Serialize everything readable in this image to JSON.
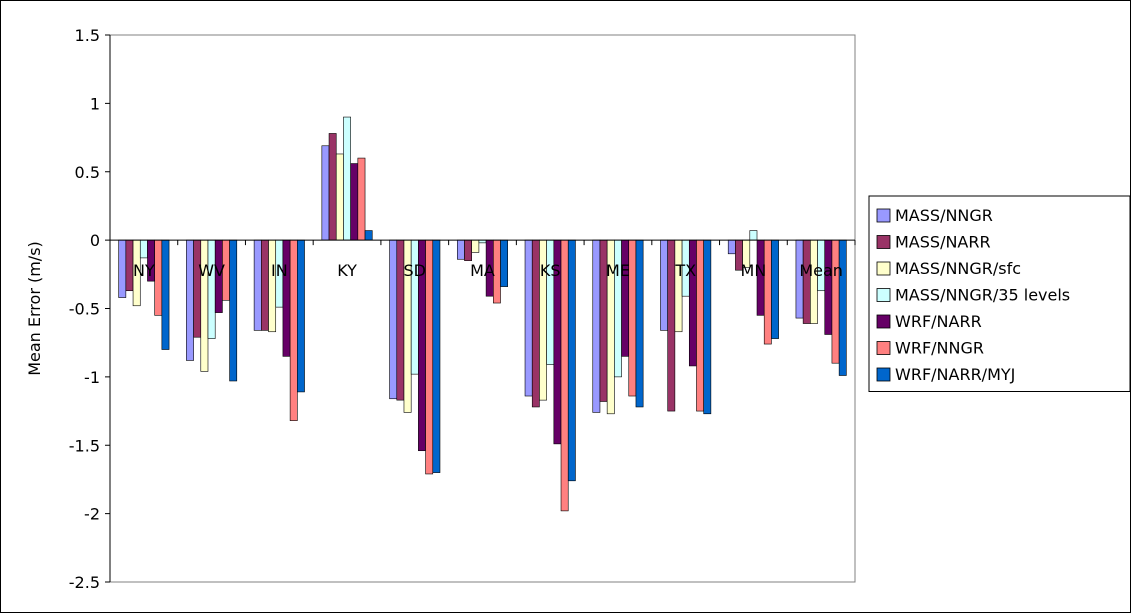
{
  "chart_data": {
    "type": "bar",
    "title": "",
    "xlabel": "",
    "ylabel": "Mean Error (m/s)",
    "ylim": [
      -2.5,
      1.5
    ],
    "yticks": [
      1.5,
      1,
      0.5,
      0,
      -0.5,
      -1,
      -1.5,
      -2,
      -2.5
    ],
    "ytick_labels": [
      "1.5",
      "1",
      "0.5",
      "0",
      "-0.5",
      "-1",
      "-1.5",
      "-2",
      "-2.5"
    ],
    "grid": false,
    "legend_position": "right",
    "categories": [
      "NY",
      "WV",
      "IN",
      "KY",
      "SD",
      "MA",
      "KS",
      "ME",
      "TX",
      "MN",
      "Mean"
    ],
    "series": [
      {
        "name": "MASS/NNGR",
        "color": "#9999ff",
        "values": [
          -0.42,
          -0.88,
          -0.66,
          0.69,
          -1.16,
          -0.14,
          -1.14,
          -1.26,
          -0.66,
          -0.1,
          -0.57
        ]
      },
      {
        "name": "MASS/NARR",
        "color": "#993366",
        "values": [
          -0.37,
          -0.71,
          -0.66,
          0.78,
          -1.17,
          -0.15,
          -1.22,
          -1.18,
          -1.25,
          -0.22,
          -0.61
        ]
      },
      {
        "name": "MASS/NNGR/sfc",
        "color": "#ffffcc",
        "values": [
          -0.48,
          -0.96,
          -0.67,
          0.63,
          -1.26,
          -0.09,
          -1.17,
          -1.27,
          -0.67,
          -0.2,
          -0.61
        ]
      },
      {
        "name": "MASS/NNGR/35 levels",
        "color": "#ccffff",
        "values": [
          -0.13,
          -0.72,
          -0.49,
          0.9,
          -0.98,
          -0.02,
          -0.91,
          -1.0,
          -0.41,
          0.07,
          -0.37
        ]
      },
      {
        "name": "WRF/NARR",
        "color": "#660066",
        "values": [
          -0.3,
          -0.53,
          -0.85,
          0.56,
          -1.54,
          -0.41,
          -1.49,
          -0.85,
          -0.92,
          -0.55,
          -0.69
        ]
      },
      {
        "name": "WRF/NNGR",
        "color": "#ff8080",
        "values": [
          -0.55,
          -0.44,
          -1.32,
          0.6,
          -1.71,
          -0.46,
          -1.98,
          -1.14,
          -1.25,
          -0.76,
          -0.9
        ]
      },
      {
        "name": "WRF/NARR/MYJ",
        "color": "#0066cc",
        "values": [
          -0.8,
          -1.03,
          -1.11,
          0.07,
          -1.7,
          -0.34,
          -1.76,
          -1.22,
          -1.27,
          -0.72,
          -0.99
        ]
      }
    ]
  }
}
